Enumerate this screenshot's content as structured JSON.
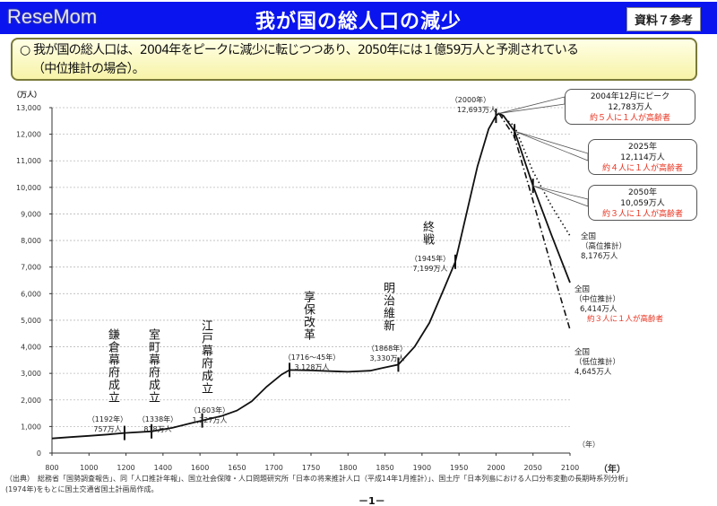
{
  "header": {
    "title": "我が国の総人口の減少",
    "reference_label": "資料７参考",
    "watermark": "ReseMom"
  },
  "summary": {
    "bullet": "○",
    "text_line1": "我が国の総人口は、2004年をピークに減少に転じつつあり、2050年には１億59万人と予測されている",
    "text_line2": "（中位推計の場合）。"
  },
  "colors": {
    "header_blue": "#0a14ee",
    "highlight_red": "#e8301c",
    "summary_bg": "#f7f3a8"
  },
  "chart_data": {
    "type": "line",
    "ylabel": "（万人）",
    "xlabel": "（年）",
    "xlabel_inner": "（年）",
    "ylim": [
      0,
      13000
    ],
    "yticks": [
      "0",
      "1,000",
      "2,000",
      "3,000",
      "4,000",
      "5,000",
      "6,000",
      "7,000",
      "8,000",
      "9,000",
      "10,000",
      "11,000",
      "12,000",
      "13,000"
    ],
    "yticks_values": [
      0,
      1000,
      2000,
      3000,
      4000,
      5000,
      6000,
      7000,
      8000,
      9000,
      10000,
      11000,
      12000,
      13000
    ],
    "xticks": [
      800,
      1000,
      1200,
      1400,
      1600,
      1650,
      1700,
      1750,
      1800,
      1850,
      1900,
      1950,
      2000,
      2050,
      2100
    ],
    "grid": true,
    "series": [
      {
        "name": "実績・中位推計",
        "style": "solid",
        "x": [
          800,
          900,
          1000,
          1100,
          1192,
          1338,
          1450,
          1550,
          1603,
          1630,
          1650,
          1670,
          1690,
          1710,
          1721,
          1750,
          1780,
          1800,
          1830,
          1846,
          1868,
          1890,
          1910,
          1930,
          1945,
          1960,
          1975,
          1990,
          2000,
          2004,
          2010,
          2025,
          2050,
          2075,
          2100
        ],
        "y": [
          550,
          600,
          650,
          700,
          757,
          818,
          950,
          1120,
          1227,
          1400,
          1600,
          1950,
          2500,
          2950,
          3128,
          3110,
          3080,
          3060,
          3100,
          3200,
          3330,
          4000,
          4900,
          6200,
          7199,
          9000,
          10800,
          12200,
          12693,
          12783,
          12700,
          12114,
          10059,
          8200,
          6414
        ]
      },
      {
        "name": "全国（高位推計）",
        "style": "dotted",
        "x": [
          2004,
          2025,
          2050,
          2075,
          2100
        ],
        "y": [
          12783,
          12300,
          10600,
          9300,
          8176
        ]
      },
      {
        "name": "全国（低位推計）",
        "style": "dashdot",
        "x": [
          2004,
          2025,
          2050,
          2075,
          2100
        ],
        "y": [
          12783,
          11900,
          9500,
          7000,
          4645
        ]
      }
    ],
    "markers": [
      1192,
      1338,
      1603,
      1721,
      1868,
      1945,
      2000,
      2025,
      2050
    ],
    "annotations": [
      {
        "event": "鎌倉幕府成立",
        "year": "（1192年）",
        "value": "757万人"
      },
      {
        "event": "室町幕府成立",
        "year": "（1338年）",
        "value": "818万人"
      },
      {
        "event": "江戸幕府成立",
        "year": "（1603年）",
        "value": "1,227万人"
      },
      {
        "event": "享保改革",
        "year": "（1716～45年）",
        "value": "3,128万人"
      },
      {
        "event": "明治維新",
        "year": "（1868年）",
        "value": "3,330万人"
      },
      {
        "event": "終戦",
        "year": "（1945年）",
        "value": "7,199万人"
      },
      {
        "event": "",
        "year": "（2000年）",
        "value": "12,693万人"
      }
    ],
    "callouts": [
      {
        "line1": "2004年12月にピーク",
        "line2": "12,783万人",
        "line3": "約５人に１人が高齢者"
      },
      {
        "line1": "2025年",
        "line2": "12,114万人",
        "line3": "約４人に１人が高齢者"
      },
      {
        "line1": "2050年",
        "line2": "10,059万人",
        "line3": "約３人に１人が高齢者"
      }
    ],
    "end_labels": [
      {
        "line1": "全国",
        "line2": "（高位推計）",
        "line3": "8,176万人"
      },
      {
        "line1": "全国",
        "line2": "（中位推計）",
        "line3": "6,414万人",
        "note": "約３人に１人が高齢者"
      },
      {
        "line1": "全国",
        "line2": "（低位推計）",
        "line3": "4,645万人"
      }
    ]
  },
  "footer": {
    "source": "（出典）　総務省「国勢調査報告」、同「人口推計年報」、国立社会保障・人口問題研究所「日本の将来推計人口（平成14年1月推計）」、国土庁「日本列島における人口分布変動の長期時系列分析」(1974年)をもとに国土交通省国土計画局作成。",
    "page": "－1－"
  }
}
